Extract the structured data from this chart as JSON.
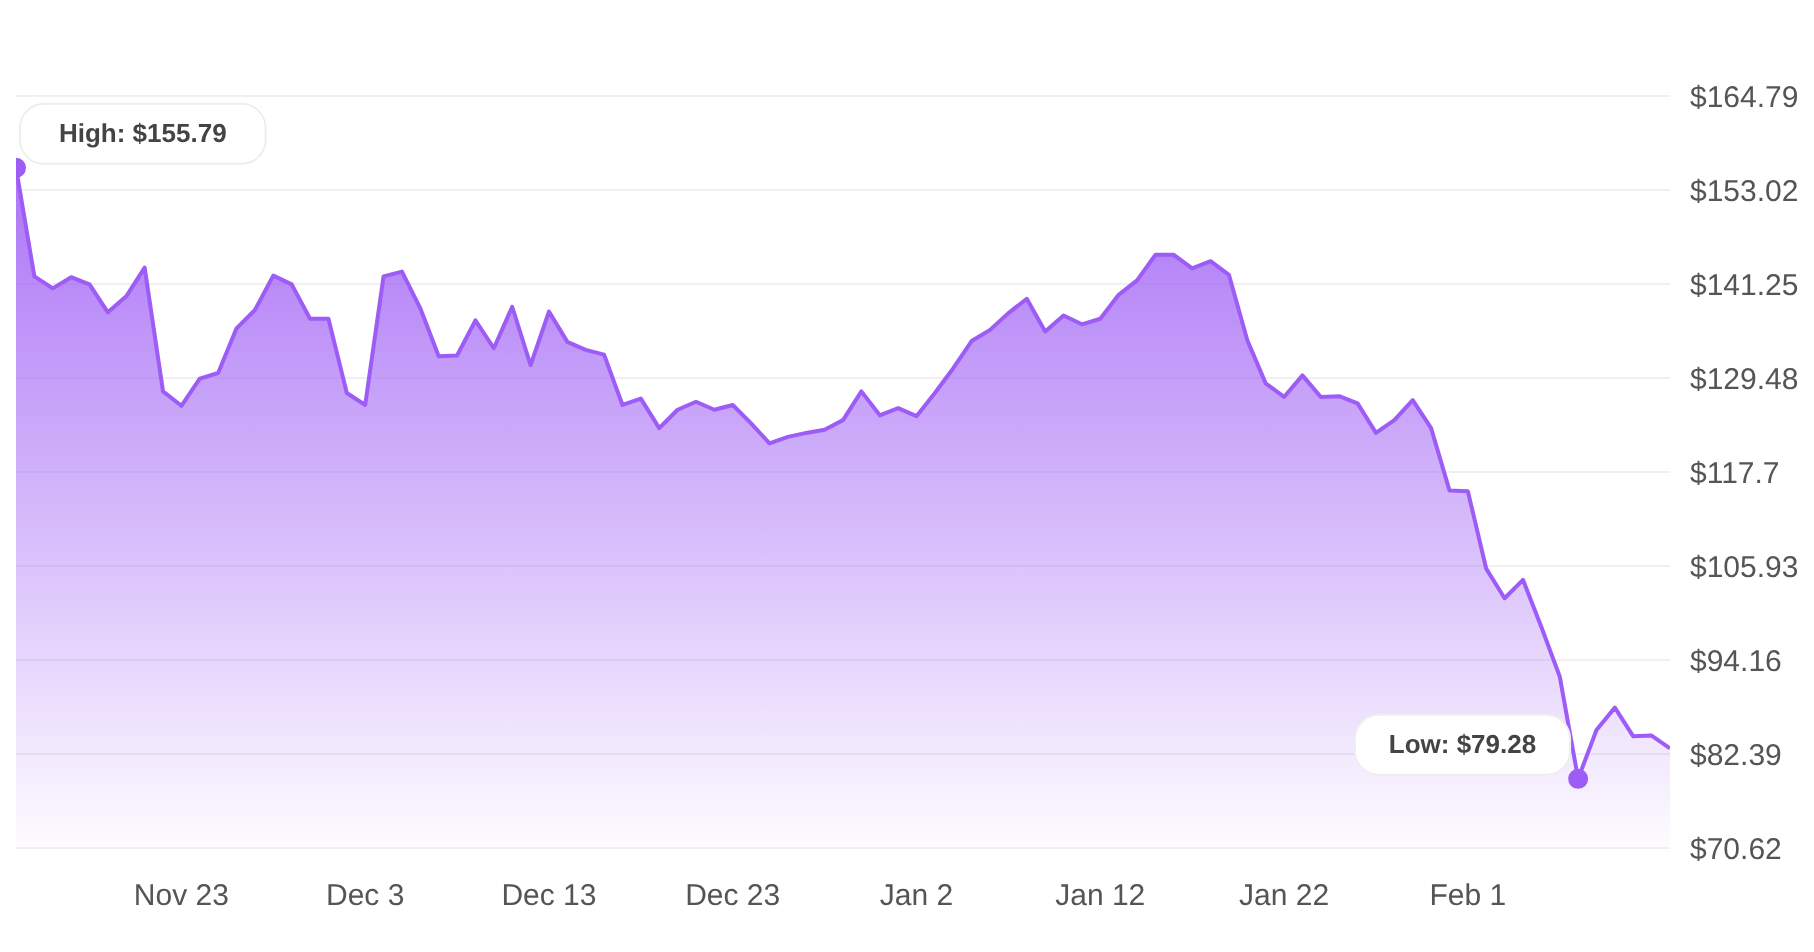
{
  "chart_data": {
    "type": "area",
    "categories": [
      null,
      null,
      null,
      null,
      null,
      null,
      null,
      null,
      null,
      "Nov 23",
      null,
      null,
      null,
      null,
      null,
      null,
      null,
      null,
      null,
      "Dec 3",
      null,
      null,
      null,
      null,
      null,
      null,
      null,
      null,
      null,
      "Dec 13",
      null,
      null,
      null,
      null,
      null,
      null,
      null,
      null,
      null,
      "Dec 23",
      null,
      null,
      null,
      null,
      null,
      null,
      null,
      null,
      null,
      "Jan 2",
      null,
      null,
      null,
      null,
      null,
      null,
      null,
      null,
      null,
      "Jan 12",
      null,
      null,
      null,
      null,
      null,
      null,
      null,
      null,
      null,
      "Jan 22",
      null,
      null,
      null,
      null,
      null,
      null,
      null,
      null,
      null,
      "Feb 1",
      null,
      null,
      null,
      null,
      null,
      null,
      null,
      null,
      null,
      null,
      null
    ],
    "series": [
      {
        "color": "#9d5cf5",
        "values": [
          155.79,
          142.2,
          140.7,
          142.1,
          141.2,
          137.7,
          139.7,
          143.3,
          127.8,
          126.0,
          129.4,
          130.1,
          135.7,
          138.0,
          142.3,
          141.2,
          136.9,
          136.9,
          127.6,
          126.1,
          142.2,
          142.8,
          138.2,
          132.2,
          132.3,
          136.7,
          133.2,
          138.4,
          131.1,
          137.8,
          134.0,
          133.0,
          132.4,
          126.1,
          126.9,
          123.2,
          125.5,
          126.5,
          125.5,
          126.1,
          123.8,
          121.3,
          122.1,
          122.6,
          123.0,
          124.2,
          127.8,
          124.8,
          125.7,
          124.7,
          127.6,
          130.7,
          134.1,
          135.5,
          137.6,
          139.4,
          135.3,
          137.3,
          136.2,
          136.9,
          139.9,
          141.7,
          144.9,
          144.9,
          143.2,
          144.1,
          142.4,
          134.2,
          128.8,
          127.1,
          129.8,
          127.1,
          127.2,
          126.3,
          122.6,
          124.2,
          126.7,
          123.2,
          115.4,
          115.3,
          105.6,
          101.9,
          104.2,
          98.3,
          92.1,
          79.28,
          85.4,
          88.2,
          84.6,
          84.7,
          83.1
        ]
      }
    ],
    "ylim": [
      70.62,
      164.79
    ],
    "yticks": [
      {
        "value": 70.62,
        "label": "$70.62"
      },
      {
        "value": 82.39,
        "label": "$82.39"
      },
      {
        "value": 94.16,
        "label": "$94.16"
      },
      {
        "value": 105.93,
        "label": "$105.93"
      },
      {
        "value": 117.7,
        "label": "$117.7"
      },
      {
        "value": 129.48,
        "label": "$129.48"
      },
      {
        "value": 141.25,
        "label": "$141.25"
      },
      {
        "value": 153.02,
        "label": "$153.02"
      },
      {
        "value": 164.79,
        "label": "$164.79"
      }
    ],
    "grid": "y",
    "annotations": [
      "High: $155.79",
      "Low: $79.28"
    ]
  }
}
